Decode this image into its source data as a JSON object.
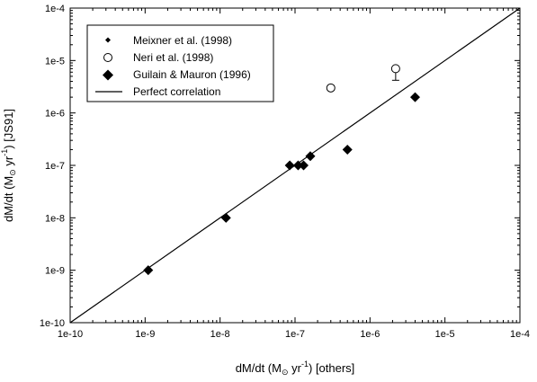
{
  "chart_data": {
    "type": "scatter",
    "xscale": "log",
    "yscale": "log",
    "xlim": [
      1e-10,
      0.0001
    ],
    "ylim": [
      1e-10,
      0.0001
    ],
    "xticks": [
      1e-10,
      1e-09,
      1e-08,
      1e-07,
      1e-06,
      1e-05,
      0.0001
    ],
    "yticks": [
      1e-10,
      1e-09,
      1e-08,
      1e-07,
      1e-06,
      1e-05,
      0.0001
    ],
    "xtick_labels": [
      "1e-10",
      "1e-9",
      "1e-8",
      "1e-7",
      "1e-6",
      "1e-5",
      "1e-4"
    ],
    "ytick_labels": [
      "1e-10",
      "1e-9",
      "1e-8",
      "1e-7",
      "1e-6",
      "1e-5",
      "1e-4"
    ],
    "xlabel": {
      "prefix": "dM/dt (M",
      "sub": "⊙",
      "mid": " yr",
      "sup": "-1",
      "suffix": ") [others]"
    },
    "ylabel": {
      "prefix": "dM/dt (M",
      "sub": "⊙",
      "mid": " yr",
      "sup": "-1",
      "suffix": ") [JS91]"
    },
    "grid": false,
    "legend_position": "top-left",
    "series": [
      {
        "name": "Meixner et al. (1998)",
        "marker": "small-diamond",
        "points": []
      },
      {
        "name": "Neri et al. (1998)",
        "marker": "open-circle",
        "points": [
          {
            "x": 3e-07,
            "y": 3e-06
          },
          {
            "x": 2.2e-06,
            "y": 7e-06,
            "yerr_low": 4.2e-06,
            "yerr_high": 7.5e-06
          }
        ]
      },
      {
        "name": "Guilain & Mauron (1996)",
        "marker": "filled-diamond",
        "points": [
          {
            "x": 1.1e-09,
            "y": 1e-09
          },
          {
            "x": 1.2e-08,
            "y": 1e-08
          },
          {
            "x": 8.5e-08,
            "y": 1e-07
          },
          {
            "x": 1.1e-07,
            "y": 1e-07
          },
          {
            "x": 1.3e-07,
            "y": 1e-07
          },
          {
            "x": 1.6e-07,
            "y": 1.5e-07
          },
          {
            "x": 5e-07,
            "y": 2e-07
          },
          {
            "x": 4e-06,
            "y": 2e-06
          }
        ]
      },
      {
        "name": "Perfect correlation",
        "marker": "line",
        "points": [
          {
            "x": 1e-10,
            "y": 1e-10
          },
          {
            "x": 0.0001,
            "y": 0.0001
          }
        ]
      }
    ]
  }
}
